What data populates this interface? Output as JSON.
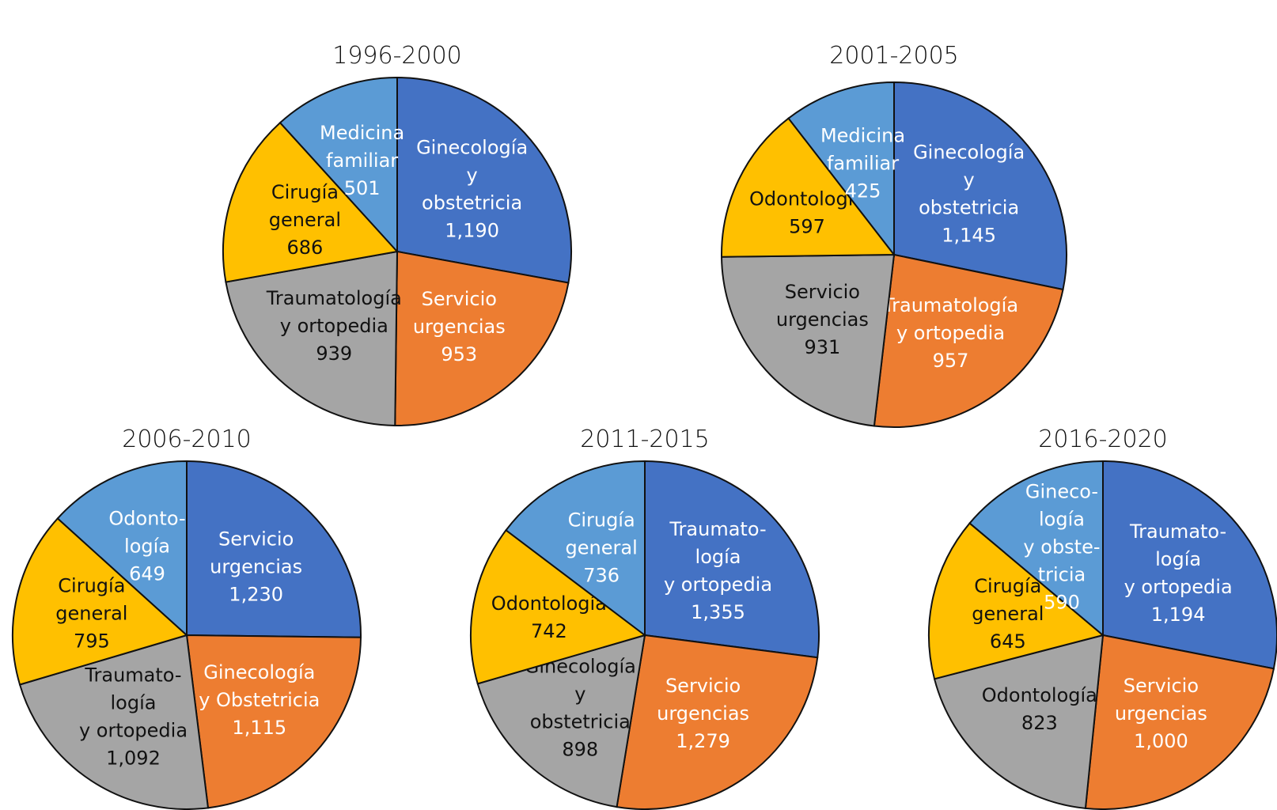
{
  "chart_data": [
    {
      "type": "pie",
      "title": "1996-2000",
      "slices": [
        {
          "label": "Ginecología y obstetricia",
          "label_lines": [
            "Ginecología",
            "y",
            "obstetricia"
          ],
          "value": 1190,
          "value_text": "1,190",
          "color": "#4472C4",
          "text_color": "#ffffff"
        },
        {
          "label": "Servicio urgencias",
          "label_lines": [
            "Servicio",
            "urgencias"
          ],
          "value": 953,
          "value_text": "953",
          "color": "#ED7D31",
          "text_color": "#ffffff"
        },
        {
          "label": "Traumatología y ortopedia",
          "label_lines": [
            "Traumatología",
            "y ortopedia"
          ],
          "value": 939,
          "value_text": "939",
          "color": "#A5A5A5",
          "text_color": "#111111"
        },
        {
          "label": "Cirugía general",
          "label_lines": [
            "Cirugía",
            "general"
          ],
          "value": 686,
          "value_text": "686",
          "color": "#FFC000",
          "text_color": "#111111"
        },
        {
          "label": "Medicina familiar",
          "label_lines": [
            "Medicina",
            "familiar"
          ],
          "value": 501,
          "value_text": "501",
          "color": "#5B9BD5",
          "text_color": "#ffffff"
        }
      ]
    },
    {
      "type": "pie",
      "title": "2001-2005",
      "slices": [
        {
          "label": "Ginecología y obstetricia",
          "label_lines": [
            "Ginecología",
            "y",
            "obstetricia"
          ],
          "value": 1145,
          "value_text": "1,145",
          "color": "#4472C4",
          "text_color": "#ffffff"
        },
        {
          "label": "Traumatología y ortopedia",
          "label_lines": [
            "Traumatología",
            "y ortopedia"
          ],
          "value": 957,
          "value_text": "957",
          "color": "#ED7D31",
          "text_color": "#ffffff"
        },
        {
          "label": "Servicio urgencias",
          "label_lines": [
            "Servicio",
            "urgencias"
          ],
          "value": 931,
          "value_text": "931",
          "color": "#A5A5A5",
          "text_color": "#111111"
        },
        {
          "label": "Odontología",
          "label_lines": [
            "Odontología"
          ],
          "value": 597,
          "value_text": "597",
          "color": "#FFC000",
          "text_color": "#111111"
        },
        {
          "label": "Medicina familiar",
          "label_lines": [
            "Medicina",
            "familiar"
          ],
          "value": 425,
          "value_text": "425",
          "color": "#5B9BD5",
          "text_color": "#ffffff"
        }
      ]
    },
    {
      "type": "pie",
      "title": "2006-2010",
      "slices": [
        {
          "label": "Servicio urgencias",
          "label_lines": [
            "Servicio",
            "urgencias"
          ],
          "value": 1230,
          "value_text": "1,230",
          "color": "#4472C4",
          "text_color": "#ffffff"
        },
        {
          "label": "Ginecología y Obstetricia",
          "label_lines": [
            "Ginecología",
            "y Obstetricia"
          ],
          "value": 1115,
          "value_text": "1,115",
          "color": "#ED7D31",
          "text_color": "#ffffff"
        },
        {
          "label": "Traumatología y ortopedia",
          "label_lines": [
            "Traumato-",
            "logía",
            "y ortopedia"
          ],
          "value": 1092,
          "value_text": "1,092",
          "color": "#A5A5A5",
          "text_color": "#111111"
        },
        {
          "label": "Cirugía general",
          "label_lines": [
            "Cirugía",
            "general"
          ],
          "value": 795,
          "value_text": "795",
          "color": "#FFC000",
          "text_color": "#111111"
        },
        {
          "label": "Odontología",
          "label_lines": [
            "Odonto-",
            "logía"
          ],
          "value": 649,
          "value_text": "649",
          "color": "#5B9BD5",
          "text_color": "#ffffff"
        }
      ]
    },
    {
      "type": "pie",
      "title": "2011-2015",
      "slices": [
        {
          "label": "Traumatología y ortopedia",
          "label_lines": [
            "Traumato-",
            "logía",
            "y ortopedia"
          ],
          "value": 1355,
          "value_text": "1,355",
          "color": "#4472C4",
          "text_color": "#ffffff"
        },
        {
          "label": "Servicio urgencias",
          "label_lines": [
            "Servicio",
            "urgencias"
          ],
          "value": 1279,
          "value_text": "1,279",
          "color": "#ED7D31",
          "text_color": "#ffffff"
        },
        {
          "label": "Ginecología y obstetricia",
          "label_lines": [
            "Ginecología",
            "y",
            "obstetricia"
          ],
          "value": 898,
          "value_text": "898",
          "color": "#A5A5A5",
          "text_color": "#111111"
        },
        {
          "label": "Odontología",
          "label_lines": [
            "Odontología"
          ],
          "value": 742,
          "value_text": "742",
          "color": "#FFC000",
          "text_color": "#111111"
        },
        {
          "label": "Cirugía general",
          "label_lines": [
            "Cirugía",
            "general"
          ],
          "value": 736,
          "value_text": "736",
          "color": "#5B9BD5",
          "text_color": "#ffffff"
        }
      ]
    },
    {
      "type": "pie",
      "title": "2016-2020",
      "slices": [
        {
          "label": "Traumatología y ortopedia",
          "label_lines": [
            "Traumato-",
            "logía",
            "y ortopedia"
          ],
          "value": 1194,
          "value_text": "1,194",
          "color": "#4472C4",
          "text_color": "#ffffff"
        },
        {
          "label": "Servicio urgencias",
          "label_lines": [
            "Servicio",
            "urgencias"
          ],
          "value": 1000,
          "value_text": "1,000",
          "color": "#ED7D31",
          "text_color": "#ffffff"
        },
        {
          "label": "Odontología",
          "label_lines": [
            "Odontología"
          ],
          "value": 823,
          "value_text": "823",
          "color": "#A5A5A5",
          "text_color": "#111111"
        },
        {
          "label": "Cirugía general",
          "label_lines": [
            "Cirugía",
            "general"
          ],
          "value": 645,
          "value_text": "645",
          "color": "#FFC000",
          "text_color": "#111111"
        },
        {
          "label": "Ginecología y obstetricia",
          "label_lines": [
            "Gineco-",
            "logía",
            "y obste-",
            "tricia"
          ],
          "value": 590,
          "value_text": "590",
          "color": "#5B9BD5",
          "text_color": "#ffffff"
        }
      ]
    }
  ]
}
